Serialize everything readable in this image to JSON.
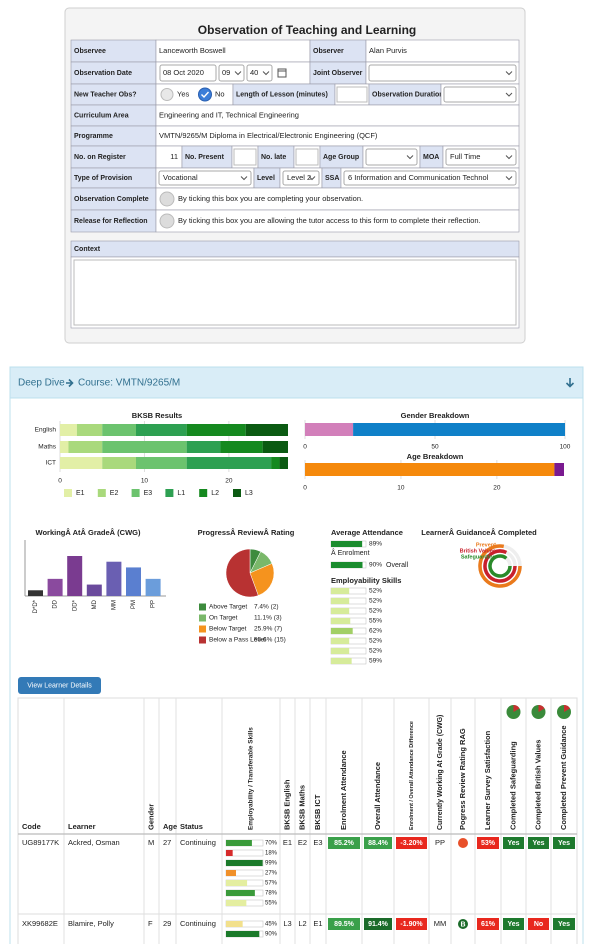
{
  "form": {
    "title": "Observation of Teaching and Learning",
    "observee_label": "Observee",
    "observee": "Lanceworth Boswell",
    "observer_label": "Observer",
    "observer": "Alan Purvis",
    "date_label": "Observation Date",
    "date": "08 Oct 2020",
    "hour": "09",
    "minute": "40",
    "joint_observer_label": "Joint Observer",
    "new_teacher_label": "New Teacher Obs?",
    "yes": "Yes",
    "no": "No",
    "lesson_length_label": "Length of Lesson (minutes)",
    "duration_label": "Observation Duration",
    "curriculum_label": "Curriculum Area",
    "curriculum": "Engineering and IT, Technical Engineering",
    "programme_label": "Programme",
    "programme": "VMTN/9265/M Diploma in Electrical/Electronic Engineering (QCF)",
    "register_label": "No. on Register",
    "register": 11,
    "present_label": "No. Present",
    "late_label": "No. late",
    "age_group_label": "Age Group",
    "moa_label": "MOA",
    "moa": "Full Time",
    "provision_label": "Type of Provision",
    "provision": "Vocational",
    "level_label": "Level",
    "level": "Level 2",
    "ssa_label": "SSA",
    "ssa": "6 Information and Communication Technol",
    "complete_label": "Observation Complete",
    "complete_text": "By ticking this box you are completing your observation.",
    "release_label": "Release for Reflection",
    "release_text": "By ticking this box you are allowing the tutor access to this form to complete their reflection.",
    "context_label": "Context"
  },
  "deep_dive": {
    "title": "Deep Dive",
    "course": "Course: VMTN/9265/M"
  },
  "chart_data": [
    {
      "type": "hbar",
      "stacked": true,
      "title": "BKSB Results",
      "categories": [
        "English",
        "Maths",
        "ICT"
      ],
      "series": [
        {
          "name": "E1",
          "color": "#e2efa6",
          "values": [
            2,
            1,
            5
          ]
        },
        {
          "name": "E2",
          "color": "#a9d97c",
          "values": [
            3,
            4,
            4
          ]
        },
        {
          "name": "E3",
          "color": "#6cc36e",
          "values": [
            4,
            10,
            6
          ]
        },
        {
          "name": "L1",
          "color": "#2ea052",
          "values": [
            6,
            4,
            10
          ]
        },
        {
          "name": "L2",
          "color": "#15891f",
          "values": [
            7,
            5,
            1
          ]
        },
        {
          "name": "L3",
          "color": "#0b5a12",
          "values": [
            5,
            3,
            1
          ]
        }
      ],
      "xlim": [
        0,
        27
      ],
      "xticks": [
        0,
        10,
        20
      ],
      "grid": true
    },
    {
      "type": "hbar",
      "stacked": true,
      "title": "Gender Breakdown",
      "series": [
        {
          "color": "#d27fba",
          "values": [
            18.5
          ]
        },
        {
          "color": "#0f80c8",
          "values": [
            81.5
          ]
        }
      ],
      "xlim": [
        0,
        100
      ],
      "xticks": [
        0,
        50,
        100
      ],
      "grid": true
    },
    {
      "type": "hbar",
      "stacked": true,
      "title": "Age Breakdown",
      "series": [
        {
          "color": "#f5890c",
          "values": [
            26
          ]
        },
        {
          "color": "#7a1a90",
          "values": [
            1
          ]
        }
      ],
      "xlim": [
        0,
        27
      ],
      "xticks": [
        0,
        10,
        20
      ],
      "grid": true
    },
    {
      "type": "bar",
      "title": "WorkingÂ AtÂ GradeÂ (CWG)",
      "categories": [
        "D*D*",
        "DD",
        "DD*",
        "MD",
        "MM",
        "PM",
        "PP"
      ],
      "values": [
        1,
        3,
        7,
        2,
        6,
        5,
        3
      ],
      "colors": [
        "#333333",
        "#8a4a9e",
        "#7a3b90",
        "#6a4a9c",
        "#6a5fb2",
        "#5a7fd0",
        "#6b9ddb"
      ]
    },
    {
      "type": "pie",
      "title": "ProgressÂ ReviewÂ Rating",
      "categories": [
        "Above Target",
        "On Target",
        "Below Target",
        "Below a Pass Level"
      ],
      "values": [
        7.4,
        11.1,
        25.9,
        55.6
      ],
      "value_labels": [
        "7.4% (2)",
        "11.1% (3)",
        "25.9% (7)",
        "55.6% (15)"
      ],
      "colors": [
        "#3d8b3d",
        "#7ab86a",
        "#f5931e",
        "#b83232"
      ]
    },
    {
      "type": "meter",
      "title": "Average Attendance",
      "categories": [
        "Â Enrolment",
        "Overall"
      ],
      "values": [
        89,
        90
      ],
      "value_labels": [
        "89%",
        "90%"
      ],
      "color": "#1b8c2e",
      "xlim": [
        0,
        100
      ]
    },
    {
      "type": "meter",
      "title": "Employability Skills",
      "values": [
        52,
        52,
        52,
        55,
        62,
        52,
        52,
        59
      ],
      "value_labels": [
        "52%",
        "52%",
        "52%",
        "55%",
        "62%",
        "52%",
        "52%",
        "59%"
      ],
      "colors": [
        "#d6eb9a",
        "#d6eb9a",
        "#d6eb9a",
        "#d6eb9a",
        "#a2cf66",
        "#d6eb9a",
        "#d6eb9a",
        "#d6eb9a"
      ],
      "xlim": [
        0,
        100
      ]
    },
    {
      "type": "rings",
      "title": "LearnerÂ GuidanceÂ Completed",
      "categories": [
        "Prevent",
        "British Values",
        "Safeguarding"
      ],
      "values": [
        78,
        82,
        86
      ],
      "colors": [
        "#ea7a1c",
        "#c8202c",
        "#2a8a2a"
      ]
    }
  ],
  "button": "View Learner Details",
  "table": {
    "headers": [
      "Code",
      "Learner",
      "Gender",
      "Age",
      "Status",
      "Employability / Transferable Skills",
      "BKSB English",
      "BKSB Maths",
      "BKSB ICT",
      "Enrolment Attendance",
      "Overall Attendance",
      "Enrolment / Overall Attendance Difference",
      "Currently Working At Grade (CWG)",
      "Pogress Review Rating RAG",
      "Learner Survey Satisfaction",
      "Completed Safeguarding",
      "Completed British Values",
      "Completed Prevent Guidance"
    ],
    "rows": [
      {
        "code": "UG89177K",
        "learner": "Ackred, Osman",
        "gender": "M",
        "age": 27,
        "status": "Continuing",
        "skills": {
          "values": [
            70,
            18,
            99,
            27,
            57,
            78,
            55
          ],
          "value_labels": [
            "70%",
            "18%",
            "99%",
            "27%",
            "57%",
            "78%",
            "55%"
          ],
          "colors": [
            "#3a9a3a",
            "#d62a2a",
            "#1b7a2a",
            "#f0902a",
            "#e4eea0",
            "#3a9a3a",
            "#e4eea0"
          ]
        },
        "bksb_english": "E1",
        "bksb_maths": "E2",
        "bksb_ict": "E3",
        "enrolment_attendance": {
          "text": "85.2%",
          "color": "#3aa04a"
        },
        "overall_attendance": {
          "text": "88.4%",
          "color": "#3aa04a"
        },
        "attendance_difference": {
          "text": "-3.20%",
          "color": "#e8281e"
        },
        "cwg": "PP",
        "rag": {
          "color": "#e8502a"
        },
        "survey": {
          "text": "53%",
          "color": "#e8281e"
        },
        "safeguarding": {
          "text": "Yes",
          "color": "#1e7a2e"
        },
        "british_values": {
          "text": "Yes",
          "color": "#1e7a2e"
        },
        "prevent": {
          "text": "Yes",
          "color": "#1e7a2e"
        }
      },
      {
        "code": "XK99682E",
        "learner": "Blamire, Polly",
        "gender": "F",
        "age": 29,
        "status": "Continuing",
        "skills": {
          "values": [
            45,
            90
          ],
          "value_labels": [
            "45%",
            "90%"
          ],
          "colors": [
            "#f2e08c",
            "#1b7a2a"
          ]
        },
        "bksb_english": "L3",
        "bksb_maths": "L2",
        "bksb_ict": "E1",
        "enrolment_attendance": {
          "text": "89.5%",
          "color": "#3aa04a"
        },
        "overall_attendance": {
          "text": "91.4%",
          "color": "#1b6b2a"
        },
        "attendance_difference": {
          "text": "-1.90%",
          "color": "#e8281e"
        },
        "cwg": "MM",
        "rag": {
          "label": "B",
          "color": "#1b6b2a"
        },
        "survey": {
          "text": "61%",
          "color": "#e8281e"
        },
        "safeguarding": {
          "text": "Yes",
          "color": "#1e7a2e"
        },
        "british_values": {
          "text": "No",
          "color": "#e8281e"
        },
        "prevent": {
          "text": "Yes",
          "color": "#1e7a2e"
        }
      }
    ]
  }
}
